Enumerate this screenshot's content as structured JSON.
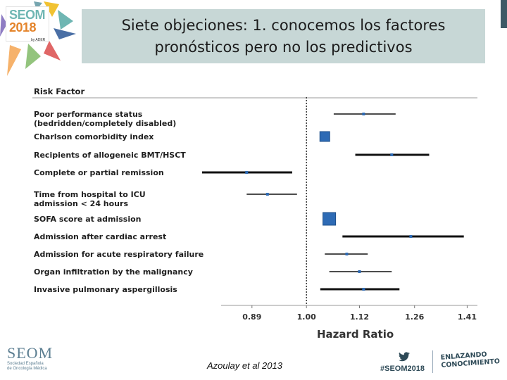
{
  "slide": {
    "title": "Siete objeciones: 1. conocemos los factores pronósticos pero no los predictivos",
    "citation": "Azoulay et al 2013"
  },
  "logo": {
    "brand": "SEOM",
    "year": "2018",
    "sub": "by ADER"
  },
  "footer": {
    "seom_word": "SEOM",
    "seom_sub_1": "Sociedad Española",
    "seom_sub_2": "de Oncología Médica",
    "hashtag": "#SEOM2018",
    "tagline_1": "ENLAZANDO",
    "tagline_2": "CONOCIMIENTO",
    "twitter_icon": "twitter-bird-icon"
  },
  "chart_data": {
    "type": "forest",
    "header": "Risk Factor",
    "xlabel": "Hazard Ratio",
    "ticks": [
      "0.89",
      "1.00",
      "1.12",
      "1.26",
      "1.41"
    ],
    "xlim": [
      0.8,
      1.45
    ],
    "log_scale": true,
    "reference_line": 1.0,
    "rows": [
      {
        "label": "Poor performance status\n(bedridden/completely disabled)",
        "hr": 1.13,
        "lo": 1.06,
        "hi": 1.21
      },
      {
        "label": "Charlson comorbidity index",
        "hr": 1.04,
        "lo": 1.04,
        "hi": 1.04
      },
      {
        "label": "Recipients of allogeneic BMT/HSCT",
        "hr": 1.2,
        "lo": 1.11,
        "hi": 1.3
      },
      {
        "label": "Complete or partial remission",
        "hr": 0.88,
        "lo": 0.8,
        "hi": 0.97
      },
      {
        "label": "Time from hospital to ICU\nadmission < 24 hours",
        "hr": 0.92,
        "lo": 0.88,
        "hi": 0.98
      },
      {
        "label": "SOFA score at admission",
        "hr": 1.05,
        "lo": 1.05,
        "hi": 1.05
      },
      {
        "label": "Admission after cardiac arrest",
        "hr": 1.25,
        "lo": 1.08,
        "hi": 1.4
      },
      {
        "label": "Admission for acute respiratory failure",
        "hr": 1.09,
        "lo": 1.04,
        "hi": 1.14
      },
      {
        "label": "Organ infiltration by the malignancy",
        "hr": 1.12,
        "lo": 1.05,
        "hi": 1.2
      },
      {
        "label": "Invasive pulmonary aspergillosis",
        "hr": 1.13,
        "lo": 1.03,
        "hi": 1.22
      }
    ]
  },
  "colors": {
    "title_bg": "#c7d7d6",
    "marker": "#2e6bb5",
    "seom_teal": "#6fb6b3",
    "seom_orange": "#e4842b"
  }
}
